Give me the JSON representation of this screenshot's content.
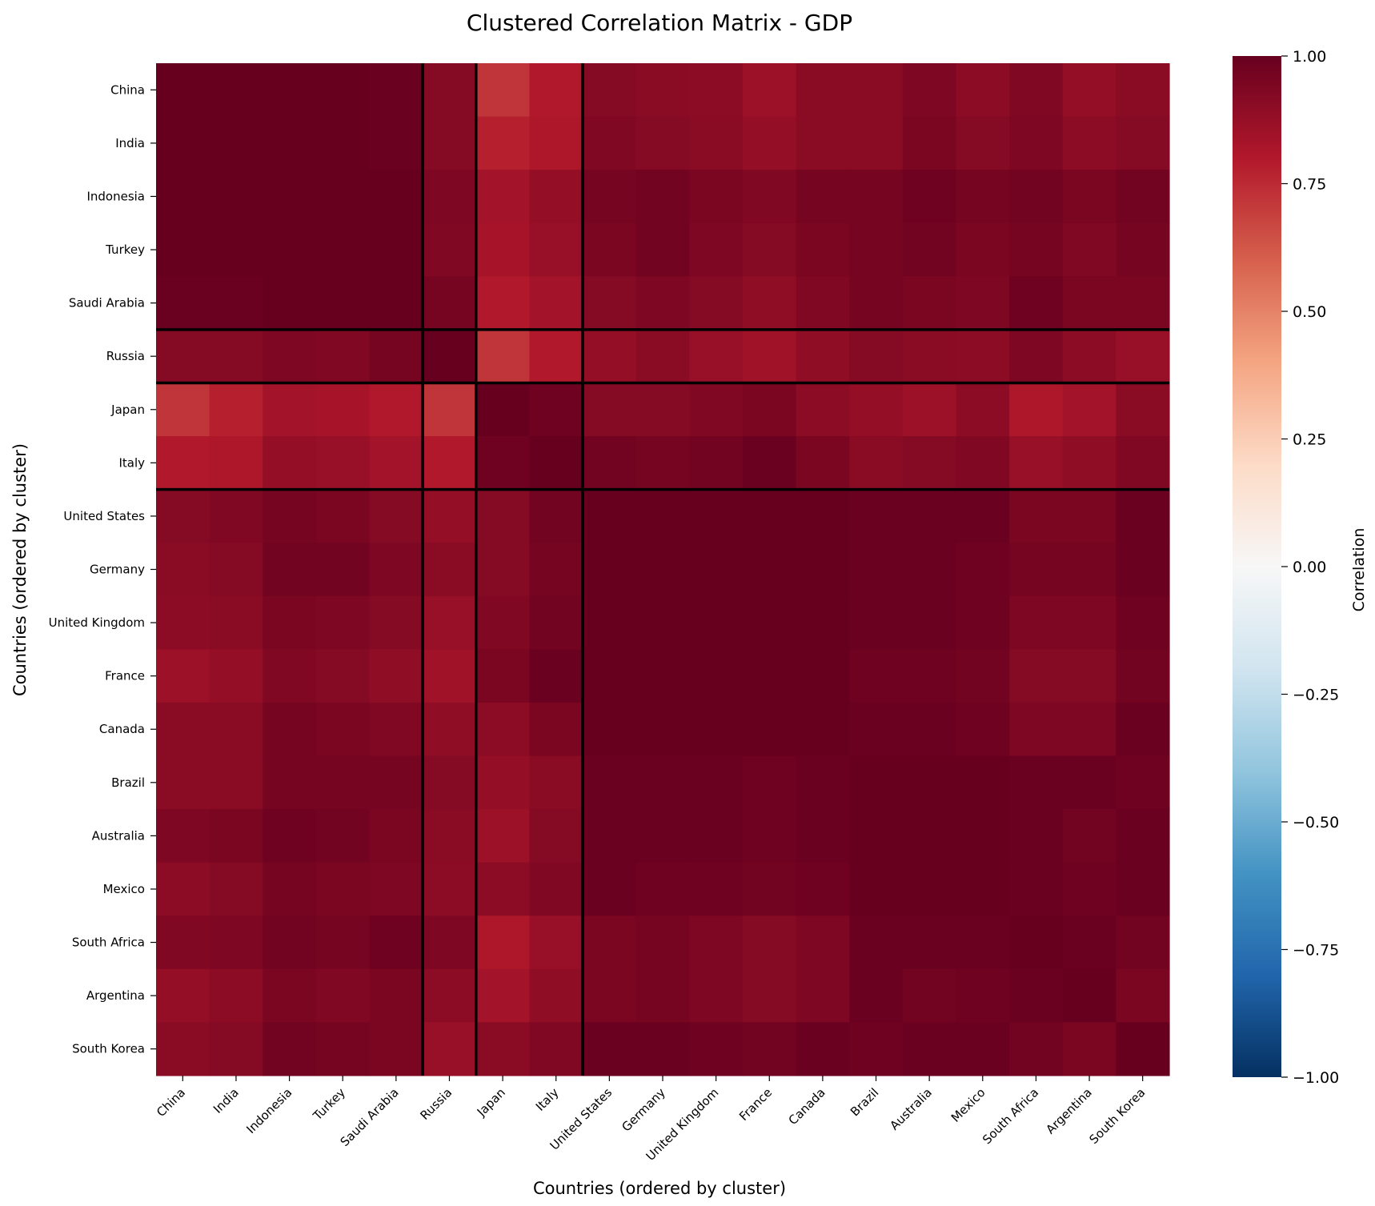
{
  "chart_data": {
    "type": "heatmap",
    "title": "Clustered Correlation Matrix - GDP",
    "xlabel": "Countries (ordered by cluster)",
    "ylabel": "Countries (ordered by cluster)",
    "colorbar_label": "Correlation",
    "colormap": "RdBu_r",
    "vmin": -1.0,
    "vmax": 1.0,
    "colorbar_ticks": [
      1.0,
      0.75,
      0.5,
      0.25,
      0.0,
      -0.25,
      -0.5,
      -0.75,
      -1.0
    ],
    "colorbar_tick_labels": [
      "1.00",
      "0.75",
      "0.50",
      "0.25",
      "0.00",
      "−0.25",
      "−0.50",
      "−0.75",
      "−1.00"
    ],
    "countries": [
      "China",
      "India",
      "Indonesia",
      "Turkey",
      "Saudi Arabia",
      "Russia",
      "Japan",
      "Italy",
      "United States",
      "Germany",
      "United Kingdom",
      "France",
      "Canada",
      "Brazil",
      "Australia",
      "Mexico",
      "South Africa",
      "Argentina",
      "South Korea"
    ],
    "cluster_boundaries_after_index": [
      4,
      5,
      7
    ],
    "matrix": [
      [
        1.0,
        1.0,
        1.0,
        1.0,
        0.99,
        0.92,
        0.72,
        0.8,
        0.92,
        0.91,
        0.9,
        0.86,
        0.91,
        0.91,
        0.94,
        0.9,
        0.93,
        0.88,
        0.91
      ],
      [
        1.0,
        1.0,
        1.0,
        1.0,
        0.99,
        0.92,
        0.78,
        0.81,
        0.93,
        0.92,
        0.91,
        0.88,
        0.91,
        0.91,
        0.95,
        0.92,
        0.94,
        0.9,
        0.92
      ],
      [
        1.0,
        1.0,
        1.0,
        1.0,
        1.0,
        0.94,
        0.84,
        0.88,
        0.96,
        0.97,
        0.95,
        0.93,
        0.96,
        0.96,
        0.98,
        0.96,
        0.97,
        0.95,
        0.97
      ],
      [
        1.0,
        1.0,
        1.0,
        1.0,
        1.0,
        0.93,
        0.83,
        0.87,
        0.95,
        0.97,
        0.94,
        0.92,
        0.95,
        0.96,
        0.97,
        0.95,
        0.96,
        0.93,
        0.96
      ],
      [
        0.99,
        0.99,
        1.0,
        1.0,
        1.0,
        0.96,
        0.8,
        0.84,
        0.92,
        0.94,
        0.92,
        0.89,
        0.93,
        0.96,
        0.95,
        0.94,
        0.98,
        0.95,
        0.95
      ],
      [
        0.92,
        0.92,
        0.94,
        0.93,
        0.96,
        1.0,
        0.72,
        0.8,
        0.88,
        0.91,
        0.87,
        0.85,
        0.89,
        0.92,
        0.91,
        0.9,
        0.94,
        0.9,
        0.87
      ],
      [
        0.72,
        0.78,
        0.84,
        0.83,
        0.8,
        0.72,
        1.0,
        0.98,
        0.92,
        0.92,
        0.93,
        0.95,
        0.9,
        0.88,
        0.86,
        0.9,
        0.81,
        0.84,
        0.91
      ],
      [
        0.8,
        0.81,
        0.88,
        0.87,
        0.84,
        0.8,
        0.98,
        1.0,
        0.97,
        0.96,
        0.97,
        0.99,
        0.95,
        0.91,
        0.92,
        0.93,
        0.87,
        0.89,
        0.93
      ],
      [
        0.92,
        0.93,
        0.96,
        0.95,
        0.92,
        0.88,
        0.92,
        0.97,
        1.0,
        1.0,
        1.0,
        1.0,
        1.0,
        0.99,
        0.99,
        0.99,
        0.95,
        0.95,
        0.99
      ],
      [
        0.91,
        0.92,
        0.97,
        0.97,
        0.94,
        0.91,
        0.92,
        0.96,
        1.0,
        1.0,
        1.0,
        1.0,
        1.0,
        0.99,
        0.99,
        0.98,
        0.96,
        0.96,
        0.99
      ],
      [
        0.9,
        0.91,
        0.95,
        0.94,
        0.92,
        0.87,
        0.93,
        0.97,
        1.0,
        1.0,
        1.0,
        1.0,
        1.0,
        0.99,
        0.99,
        0.98,
        0.94,
        0.94,
        0.98
      ],
      [
        0.86,
        0.88,
        0.93,
        0.92,
        0.89,
        0.85,
        0.95,
        0.99,
        1.0,
        1.0,
        1.0,
        1.0,
        1.0,
        0.98,
        0.98,
        0.97,
        0.92,
        0.92,
        0.97
      ],
      [
        0.91,
        0.91,
        0.96,
        0.95,
        0.93,
        0.89,
        0.9,
        0.95,
        1.0,
        1.0,
        1.0,
        1.0,
        1.0,
        0.99,
        0.99,
        0.98,
        0.94,
        0.94,
        0.99
      ],
      [
        0.91,
        0.91,
        0.96,
        0.96,
        0.96,
        0.92,
        0.88,
        0.91,
        0.99,
        0.99,
        0.99,
        0.98,
        0.99,
        1.0,
        1.0,
        1.0,
        0.99,
        0.99,
        0.98
      ],
      [
        0.94,
        0.95,
        0.98,
        0.97,
        0.95,
        0.91,
        0.86,
        0.92,
        0.99,
        0.99,
        0.99,
        0.98,
        0.99,
        1.0,
        1.0,
        1.0,
        0.99,
        0.97,
        0.99
      ],
      [
        0.9,
        0.92,
        0.96,
        0.95,
        0.94,
        0.9,
        0.9,
        0.93,
        0.99,
        0.98,
        0.98,
        0.97,
        0.98,
        1.0,
        1.0,
        1.0,
        0.99,
        0.98,
        0.99
      ],
      [
        0.93,
        0.94,
        0.97,
        0.96,
        0.98,
        0.94,
        0.81,
        0.87,
        0.95,
        0.96,
        0.94,
        0.92,
        0.94,
        0.99,
        0.99,
        0.99,
        1.0,
        0.99,
        0.97
      ],
      [
        0.88,
        0.9,
        0.95,
        0.93,
        0.95,
        0.9,
        0.84,
        0.89,
        0.95,
        0.96,
        0.94,
        0.92,
        0.94,
        0.99,
        0.97,
        0.98,
        0.99,
        1.0,
        0.95
      ],
      [
        0.91,
        0.92,
        0.97,
        0.96,
        0.95,
        0.87,
        0.91,
        0.93,
        0.99,
        0.99,
        0.98,
        0.97,
        0.99,
        0.98,
        0.99,
        0.99,
        0.97,
        0.95,
        1.0
      ]
    ]
  }
}
